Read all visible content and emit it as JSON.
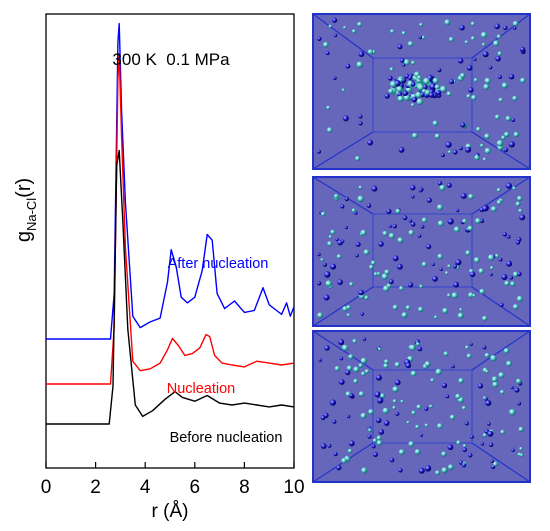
{
  "chart_data": {
    "type": "line",
    "annotation": "300 K  0.1 MPa",
    "xlabel": "r (Å)",
    "ylabel": "g",
    "ylabel_sub": "Na-Cl",
    "ylabel_tail": "(r)",
    "xlim": [
      0,
      10
    ],
    "xticks": [
      "0",
      "2",
      "4",
      "6",
      "8",
      "10"
    ],
    "y_tick_labels": false,
    "series": [
      {
        "name": "After nucleation",
        "color": "#0000ff",
        "x": [
          0,
          2.6,
          2.75,
          2.9,
          2.95,
          3.05,
          3.2,
          3.5,
          3.8,
          4.2,
          4.6,
          4.9,
          5.05,
          5.25,
          5.45,
          5.7,
          6.0,
          6.3,
          6.5,
          6.7,
          6.9,
          7.2,
          7.6,
          8.0,
          8.4,
          8.75,
          9.0,
          9.3,
          9.5,
          9.7,
          9.85,
          10.0
        ],
        "y": [
          0,
          0,
          1.2,
          7.8,
          8.3,
          6.0,
          3.6,
          0.6,
          0.3,
          0.45,
          0.55,
          1.5,
          2.35,
          1.9,
          1.1,
          0.95,
          1.1,
          1.8,
          2.75,
          2.6,
          1.2,
          0.8,
          1.0,
          0.7,
          0.75,
          1.35,
          0.9,
          0.75,
          0.65,
          0.95,
          0.6,
          0.85
        ]
      },
      {
        "name": "Nucleation",
        "color": "#ff0000",
        "x": [
          0,
          2.6,
          2.75,
          2.9,
          2.95,
          3.05,
          3.2,
          3.5,
          3.8,
          4.2,
          4.6,
          4.9,
          5.1,
          5.35,
          5.6,
          5.9,
          6.2,
          6.45,
          6.6,
          6.8,
          7.1,
          7.5,
          8.0,
          8.5,
          9.0,
          9.5,
          10.0
        ],
        "y": [
          0,
          0,
          1.5,
          8.0,
          8.7,
          6.5,
          3.6,
          0.6,
          0.35,
          0.4,
          0.55,
          0.9,
          1.2,
          1.0,
          0.75,
          0.8,
          0.95,
          1.3,
          1.25,
          0.75,
          0.55,
          0.5,
          0.45,
          0.6,
          0.55,
          0.5,
          0.55
        ]
      },
      {
        "name": "Before nucleation",
        "color": "#000000",
        "x": [
          0,
          2.55,
          2.7,
          2.85,
          2.95,
          3.1,
          3.3,
          3.6,
          3.9,
          4.3,
          4.8,
          5.2,
          5.5,
          6.0,
          6.5,
          7.0,
          7.5,
          8.0,
          8.5,
          9.0,
          9.5,
          10.0
        ],
        "y": [
          0,
          0,
          1.0,
          6.8,
          7.2,
          5.3,
          2.5,
          0.5,
          0.2,
          0.35,
          0.65,
          0.85,
          0.7,
          0.6,
          0.75,
          0.55,
          0.5,
          0.55,
          0.5,
          0.45,
          0.5,
          0.45
        ]
      }
    ]
  }
}
